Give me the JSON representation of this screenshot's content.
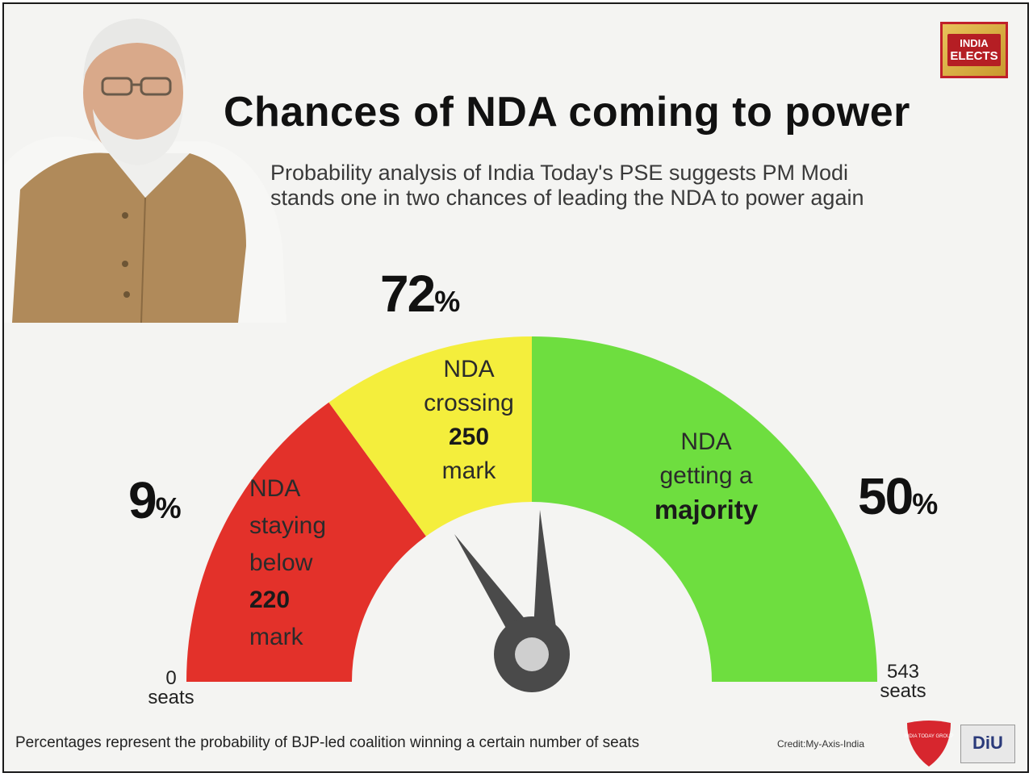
{
  "header": {
    "title": "Chances of NDA coming to power",
    "subtitle_line1": "Probability analysis of India Today's PSE suggests PM Modi",
    "subtitle_line2": "stands one in two chances of leading the NDA to power again"
  },
  "logo": {
    "line1": "INDIA",
    "line2": "ELECTS"
  },
  "colors": {
    "red": "#e3312a",
    "yellow": "#f4ee3c",
    "green": "#6ede3f",
    "needle": "#4a4a4a"
  },
  "chart_data": {
    "type": "gauge",
    "title": "Chances of NDA coming to power",
    "scale": {
      "min_label": "0",
      "min_unit": "seats",
      "max_label": "543",
      "max_unit": "seats"
    },
    "segments": [
      {
        "probability": 9,
        "probability_label": "9",
        "label_lines": [
          "NDA",
          "staying",
          "below"
        ],
        "label_bold": "220",
        "label_after": "mark",
        "color": "#e3312a"
      },
      {
        "probability": 72,
        "probability_label": "72",
        "label_lines": [
          "NDA",
          "crossing"
        ],
        "label_bold": "250",
        "label_after": "mark",
        "color": "#f4ee3c"
      },
      {
        "probability": 50,
        "probability_label": "50",
        "label_lines": [
          "NDA",
          "getting a"
        ],
        "label_bold": "majority",
        "label_after": "",
        "color": "#6ede3f"
      }
    ],
    "percent_symbol": "%"
  },
  "footer": {
    "note": "Percentages represent the probability of BJP-led coalition winning a certain number of seats",
    "credit": "Credit:My-Axis-India",
    "itg_logo": "INDIA TODAY GROUP",
    "diu_logo": "DiU"
  }
}
